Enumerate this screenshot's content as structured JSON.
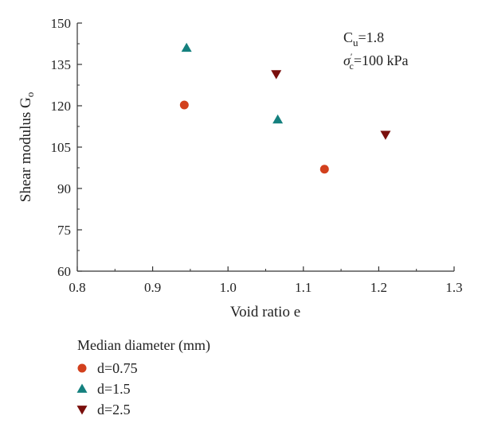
{
  "chart_data": {
    "type": "scatter",
    "xlabel": "Void ratio e",
    "ylabel": "Shear modulus G",
    "ylabel_sub": "o",
    "xlim": [
      0.8,
      1.3
    ],
    "ylim": [
      60,
      150
    ],
    "x_ticks": [
      0.8,
      0.9,
      1.0,
      1.1,
      1.2,
      1.3
    ],
    "x_tick_labels": [
      "0.8",
      "0.9",
      "1.0",
      "1.1",
      "1.2",
      "1.3"
    ],
    "y_ticks": [
      60,
      75,
      90,
      105,
      120,
      135,
      150
    ],
    "y_tick_labels": [
      "60",
      "75",
      "90",
      "105",
      "120",
      "135",
      "150"
    ],
    "grid": false,
    "annotations": {
      "cu_main": "C",
      "cu_sub": "u",
      "cu_value": "=1.8",
      "sigma_main": "σ",
      "sigma_sup": "′",
      "sigma_sub": "c",
      "sigma_value": "=100 kPa"
    },
    "legend": {
      "title": "Median diameter (mm)",
      "placement": "bottom-left"
    },
    "series": [
      {
        "name": "d=0.75",
        "marker": "circle",
        "color": "#d2401d",
        "points": [
          {
            "x": 0.942,
            "y": 120.3
          },
          {
            "x": 1.128,
            "y": 97.0
          }
        ]
      },
      {
        "name": "d=1.5",
        "marker": "triangle-up",
        "color": "#14807e",
        "points": [
          {
            "x": 0.945,
            "y": 141.0
          },
          {
            "x": 1.066,
            "y": 115.0
          }
        ]
      },
      {
        "name": "d=2.5",
        "marker": "triangle-down",
        "color": "#7a0f0c",
        "points": [
          {
            "x": 1.064,
            "y": 131.5
          },
          {
            "x": 1.209,
            "y": 109.5
          }
        ]
      }
    ]
  }
}
